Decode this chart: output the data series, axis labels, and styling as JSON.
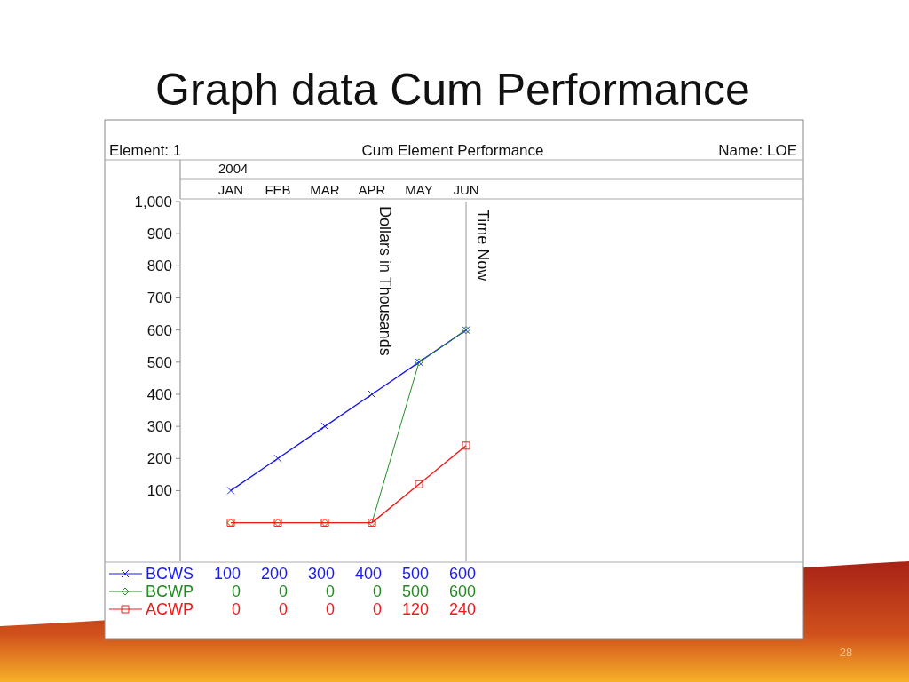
{
  "chart_data": {
    "type": "line",
    "title": "Graph data Cum Performance",
    "subtitle": "Cum Element Performance",
    "ylabel": "Dollars in Thousands",
    "categories": [
      "JAN",
      "FEB",
      "MAR",
      "APR",
      "MAY",
      "JUN"
    ],
    "series": [
      {
        "name": "BCWS",
        "color": "#1a1aee",
        "marker": "cross",
        "values": [
          100,
          200,
          300,
          400,
          500,
          600
        ]
      },
      {
        "name": "BCWP",
        "color": "#228b22",
        "marker": "diamond",
        "values": [
          0,
          0,
          0,
          0,
          500,
          600
        ]
      },
      {
        "name": "ACWP",
        "color": "#ee1a1a",
        "marker": "square",
        "values": [
          0,
          0,
          0,
          0,
          120,
          240
        ]
      }
    ],
    "ylim": [
      -120,
      1000
    ],
    "yticks": [
      100,
      200,
      300,
      400,
      500,
      600,
      700,
      800,
      900,
      {
        "value": 1000,
        "label": "1,000"
      }
    ],
    "legend": "bottom",
    "data_labels": true,
    "line_style": "solid",
    "ref_lines": [
      {
        "axis": "x",
        "value": "JUN",
        "label": "Time Now",
        "color": "#999999"
      }
    ],
    "annotations": [
      "Element: 1",
      "Name: LOE",
      "2004",
      "28"
    ]
  }
}
